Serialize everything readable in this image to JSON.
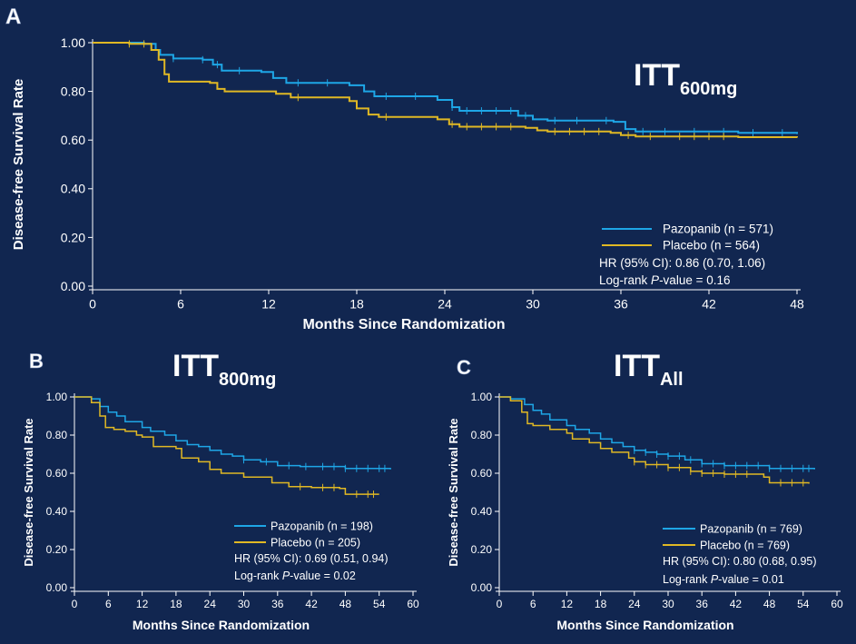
{
  "colors": {
    "background": "#112650",
    "pazopanib": "#1ea6e6",
    "placebo": "#e0b824",
    "axis": "#ffffff"
  },
  "chart_data": [
    {
      "panel": "A",
      "type": "line",
      "title": "ITT",
      "title_sub": "600mg",
      "xlabel": "Months Since Randomization",
      "ylabel": "Disease-free Survival Rate",
      "xlim": [
        0,
        48
      ],
      "ylim": [
        0,
        1
      ],
      "xticks": [
        0,
        6,
        12,
        18,
        24,
        30,
        36,
        42,
        48
      ],
      "xtick_labels": [
        "0",
        "6",
        "12",
        "18",
        "24",
        "30",
        "36",
        "42",
        "48"
      ],
      "yticks": [
        0,
        0.2,
        0.4,
        0.6,
        0.8,
        1.0
      ],
      "ytick_labels": [
        "0.00",
        "0.20",
        "0.40",
        "0.60",
        "0.80",
        "1.00"
      ],
      "legend": [
        "Pazopanib  (n = 571)",
        "Placebo  (n = 564)"
      ],
      "annotations": [
        "HR (95% CI): 0.86 (0.70, 1.06)",
        "Log-rank  ",
        "P",
        "-value = 0.16"
      ],
      "series": [
        {
          "name": "Pazopanib  (n = 571)",
          "x": [
            0,
            1.5,
            3.5,
            4.3,
            4.6,
            5.5,
            7.5,
            8.2,
            8.8,
            11.5,
            12.3,
            13.2,
            17.5,
            18.5,
            19.2,
            23.5,
            24.5,
            25.0,
            29.0,
            30.0,
            31.0,
            35.5,
            36.3,
            37.0,
            44.0,
            48.0
          ],
          "y": [
            1.0,
            1.0,
            0.995,
            0.97,
            0.95,
            0.935,
            0.93,
            0.91,
            0.885,
            0.88,
            0.855,
            0.835,
            0.825,
            0.8,
            0.78,
            0.765,
            0.735,
            0.72,
            0.7,
            0.685,
            0.68,
            0.675,
            0.645,
            0.635,
            0.63,
            0.625
          ],
          "censor_x": [
            5.5,
            7.5,
            8.5,
            10,
            14,
            16,
            20,
            22,
            24.5,
            25.5,
            26.5,
            27.5,
            28.5,
            29.5,
            31.5,
            33,
            35,
            37.5,
            39,
            41,
            43,
            45,
            47
          ]
        },
        {
          "name": "Placebo  (n = 564)",
          "x": [
            0,
            2.5,
            4.0,
            4.5,
            4.9,
            5.2,
            8.0,
            8.5,
            9.0,
            12.5,
            13.5,
            17.5,
            18.0,
            18.8,
            19.5,
            23.5,
            24.3,
            25.0,
            29.5,
            30.3,
            31.0,
            35.3,
            36.0,
            37.0,
            44.0,
            48.0
          ],
          "y": [
            1.0,
            0.995,
            0.97,
            0.93,
            0.87,
            0.84,
            0.835,
            0.81,
            0.8,
            0.79,
            0.775,
            0.76,
            0.73,
            0.705,
            0.695,
            0.685,
            0.665,
            0.655,
            0.65,
            0.64,
            0.635,
            0.63,
            0.62,
            0.615,
            0.612,
            0.61
          ],
          "censor_x": [
            2.5,
            3.5,
            14,
            20,
            24.5,
            25.5,
            26.5,
            27.5,
            28.5,
            31.5,
            32.5,
            33.5,
            34.5,
            36.5,
            38,
            40,
            41,
            42,
            43
          ]
        }
      ]
    },
    {
      "panel": "B",
      "type": "line",
      "title": "ITT",
      "title_sub": "800mg",
      "xlabel": "Months Since Randomization",
      "ylabel": "Disease-free Survival Rate",
      "xlim": [
        0,
        60
      ],
      "ylim": [
        0,
        1
      ],
      "xticks": [
        0,
        6,
        12,
        18,
        24,
        30,
        36,
        42,
        48,
        54,
        60
      ],
      "xtick_labels": [
        "0",
        "6",
        "12",
        "18",
        "24",
        "30",
        "36",
        "42",
        "48",
        "54",
        "60"
      ],
      "yticks": [
        0,
        0.2,
        0.4,
        0.6,
        0.8,
        1.0
      ],
      "ytick_labels": [
        "0.00",
        "0.20",
        "0.40",
        "0.60",
        "0.80",
        "1.00"
      ],
      "legend": [
        "Pazopanib (n = 198)",
        "Placebo (n = 205)"
      ],
      "annotations": [
        "HR (95% CI): 0.69 (0.51, 0.94)",
        "Log-rank ",
        "P",
        "-value = 0.02"
      ],
      "series": [
        {
          "name": "Pazopanib (n = 198)",
          "x": [
            0,
            3,
            4.5,
            6,
            7.5,
            9,
            12,
            13.5,
            16,
            18,
            20,
            22,
            24,
            26,
            28,
            30,
            33,
            36,
            40,
            48,
            56
          ],
          "y": [
            1.0,
            0.99,
            0.95,
            0.92,
            0.9,
            0.87,
            0.84,
            0.82,
            0.8,
            0.77,
            0.75,
            0.74,
            0.72,
            0.7,
            0.69,
            0.67,
            0.66,
            0.64,
            0.635,
            0.625,
            0.62
          ],
          "censor_x": [
            30,
            34,
            38,
            41,
            44,
            46,
            48,
            50,
            52,
            54,
            55
          ]
        },
        {
          "name": "Placebo (n = 205)",
          "x": [
            0,
            3,
            4.5,
            5.5,
            7,
            9,
            11,
            12,
            14,
            18,
            19,
            22,
            24,
            26,
            30,
            35,
            38,
            42,
            47,
            48,
            54
          ],
          "y": [
            1.0,
            0.97,
            0.9,
            0.84,
            0.83,
            0.82,
            0.8,
            0.79,
            0.74,
            0.73,
            0.68,
            0.66,
            0.62,
            0.6,
            0.58,
            0.55,
            0.53,
            0.525,
            0.52,
            0.49,
            0.49
          ],
          "censor_x": [
            40,
            44,
            46,
            50,
            52,
            53
          ]
        }
      ]
    },
    {
      "panel": "C",
      "type": "line",
      "title": "ITT",
      "title_sub": "All",
      "xlabel": "Months Since Randomization",
      "ylabel": "Disease-free Survival Rate",
      "xlim": [
        0,
        60
      ],
      "ylim": [
        0,
        1
      ],
      "xticks": [
        0,
        6,
        12,
        18,
        24,
        30,
        36,
        42,
        48,
        54,
        60
      ],
      "xtick_labels": [
        "0",
        "6",
        "12",
        "18",
        "24",
        "30",
        "36",
        "42",
        "48",
        "54",
        "60"
      ],
      "yticks": [
        0,
        0.2,
        0.4,
        0.6,
        0.8,
        1.0
      ],
      "ytick_labels": [
        "0.00",
        "0.20",
        "0.40",
        "0.60",
        "0.80",
        "1.00"
      ],
      "legend": [
        "Pazopanib (n = 769)",
        "Placebo (n = 769)"
      ],
      "annotations": [
        "HR (95% CI): 0.80 (0.68, 0.95)",
        "Log-rank ",
        "P",
        "-value = 0.01"
      ],
      "series": [
        {
          "name": "Pazopanib (n = 769)",
          "x": [
            0,
            2,
            4.5,
            6,
            7.5,
            9,
            12,
            13.5,
            16,
            18,
            20,
            22,
            24,
            26,
            28,
            30,
            33,
            36,
            40,
            48,
            56
          ],
          "y": [
            1.0,
            0.99,
            0.96,
            0.93,
            0.91,
            0.88,
            0.85,
            0.83,
            0.81,
            0.78,
            0.76,
            0.74,
            0.72,
            0.71,
            0.7,
            0.69,
            0.67,
            0.65,
            0.64,
            0.625,
            0.62
          ],
          "censor_x": [
            24,
            26,
            28,
            30,
            32,
            34,
            36,
            38,
            40,
            42,
            44,
            46,
            48,
            50,
            52,
            54,
            55
          ]
        },
        {
          "name": "Placebo (n = 769)",
          "x": [
            0,
            2,
            4,
            5,
            6,
            9,
            12,
            13,
            16,
            18,
            20,
            23,
            24,
            26,
            30,
            34,
            36,
            40,
            47,
            48,
            55
          ],
          "y": [
            1.0,
            0.98,
            0.92,
            0.86,
            0.85,
            0.83,
            0.81,
            0.78,
            0.76,
            0.73,
            0.71,
            0.68,
            0.66,
            0.645,
            0.63,
            0.61,
            0.6,
            0.595,
            0.58,
            0.55,
            0.545
          ],
          "censor_x": [
            24,
            26,
            28,
            30,
            32,
            34,
            36,
            38,
            40,
            42,
            44,
            50,
            52,
            54
          ]
        }
      ]
    }
  ]
}
